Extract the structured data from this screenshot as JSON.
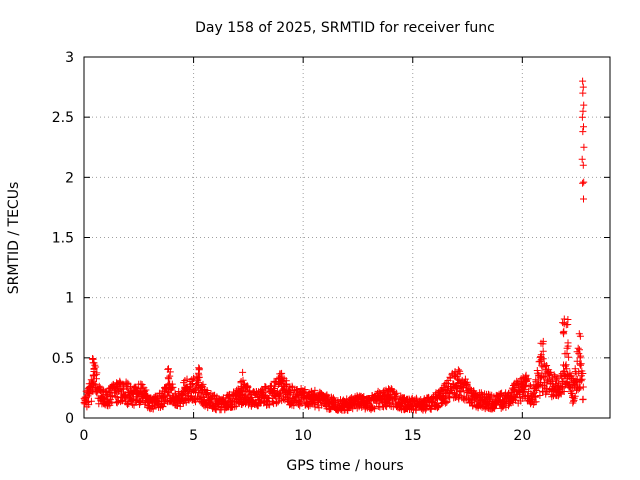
{
  "chart_data": {
    "type": "scatter",
    "title": "Day 158 of 2025, SRMTID for receiver func",
    "xlabel": "GPS time / hours",
    "ylabel": "SRMTID / TECUs",
    "xlim": [
      0,
      24
    ],
    "ylim": [
      0,
      3
    ],
    "xticks": [
      0,
      5,
      10,
      15,
      20
    ],
    "yticks": [
      0,
      0.5,
      1,
      1.5,
      2,
      2.5,
      3
    ],
    "grid": true,
    "marker": "+",
    "color": "#ff0000",
    "series": [
      {
        "name": "SRMTID",
        "baseline_profile": [
          [
            0.0,
            0.13
          ],
          [
            0.3,
            0.22
          ],
          [
            0.5,
            0.32
          ],
          [
            0.7,
            0.18
          ],
          [
            1.0,
            0.15
          ],
          [
            1.3,
            0.2
          ],
          [
            1.8,
            0.22
          ],
          [
            2.2,
            0.18
          ],
          [
            2.6,
            0.2
          ],
          [
            3.0,
            0.13
          ],
          [
            3.5,
            0.15
          ],
          [
            3.9,
            0.24
          ],
          [
            4.2,
            0.13
          ],
          [
            4.6,
            0.22
          ],
          [
            5.2,
            0.25
          ],
          [
            5.6,
            0.16
          ],
          [
            6.2,
            0.11
          ],
          [
            6.8,
            0.15
          ],
          [
            7.3,
            0.2
          ],
          [
            7.8,
            0.15
          ],
          [
            8.5,
            0.2
          ],
          [
            9.0,
            0.24
          ],
          [
            9.5,
            0.18
          ],
          [
            10.0,
            0.17
          ],
          [
            10.5,
            0.16
          ],
          [
            11.0,
            0.14
          ],
          [
            11.5,
            0.11
          ],
          [
            12.0,
            0.11
          ],
          [
            12.5,
            0.13
          ],
          [
            13.0,
            0.12
          ],
          [
            13.5,
            0.16
          ],
          [
            14.0,
            0.17
          ],
          [
            14.5,
            0.12
          ],
          [
            15.0,
            0.12
          ],
          [
            15.5,
            0.11
          ],
          [
            16.0,
            0.14
          ],
          [
            16.5,
            0.2
          ],
          [
            17.0,
            0.3
          ],
          [
            17.3,
            0.25
          ],
          [
            17.7,
            0.16
          ],
          [
            18.3,
            0.14
          ],
          [
            18.8,
            0.13
          ],
          [
            19.3,
            0.16
          ],
          [
            19.8,
            0.22
          ],
          [
            20.1,
            0.28
          ],
          [
            20.5,
            0.18
          ],
          [
            20.9,
            0.4
          ],
          [
            21.3,
            0.27
          ],
          [
            21.8,
            0.25
          ],
          [
            22.0,
            0.45
          ],
          [
            22.3,
            0.2
          ],
          [
            22.6,
            0.45
          ],
          [
            22.7,
            0.3
          ],
          [
            22.8,
            0.2
          ]
        ],
        "peaks": [
          [
            0.45,
            0.52
          ],
          [
            3.9,
            0.41
          ],
          [
            5.25,
            0.45
          ],
          [
            7.2,
            0.38
          ],
          [
            9.0,
            0.41
          ],
          [
            17.0,
            0.38
          ],
          [
            20.1,
            0.4
          ],
          [
            20.9,
            0.72
          ],
          [
            21.9,
            0.9
          ],
          [
            22.05,
            0.85
          ]
        ],
        "outliers": [
          [
            22.75,
            2.8
          ],
          [
            22.78,
            2.75
          ],
          [
            22.76,
            2.7
          ],
          [
            22.8,
            2.6
          ],
          [
            22.77,
            2.55
          ],
          [
            22.74,
            2.5
          ],
          [
            22.79,
            2.42
          ],
          [
            22.76,
            2.38
          ],
          [
            22.81,
            2.25
          ],
          [
            22.73,
            2.15
          ],
          [
            22.78,
            2.1
          ],
          [
            22.8,
            1.96
          ],
          [
            22.75,
            1.95
          ],
          [
            22.79,
            1.82
          ],
          [
            22.6,
            0.7
          ],
          [
            22.65,
            0.68
          ],
          [
            22.55,
            0.58
          ],
          [
            22.62,
            0.45
          ],
          [
            22.5,
            0.55
          ]
        ]
      }
    ]
  }
}
